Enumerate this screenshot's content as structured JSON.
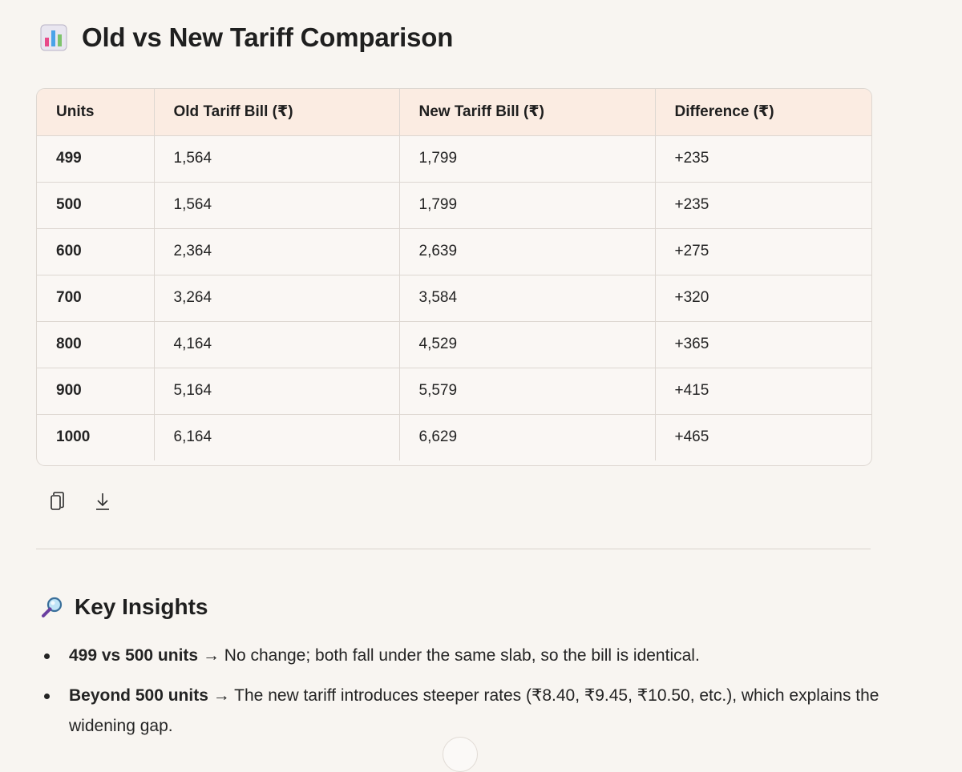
{
  "heading": {
    "icon": "bar-chart-icon",
    "title": "Old vs New Tariff Comparison"
  },
  "table": {
    "headers": [
      "Units",
      "Old Tariff Bill (₹)",
      "New Tariff Bill (₹)",
      "Difference (₹)"
    ],
    "rows": [
      [
        "499",
        "1,564",
        "1,799",
        "+235"
      ],
      [
        "500",
        "1,564",
        "1,799",
        "+235"
      ],
      [
        "600",
        "2,364",
        "2,639",
        "+275"
      ],
      [
        "700",
        "3,264",
        "3,584",
        "+320"
      ],
      [
        "800",
        "4,164",
        "4,529",
        "+365"
      ],
      [
        "900",
        "5,164",
        "5,579",
        "+415"
      ],
      [
        "1000",
        "6,164",
        "6,629",
        "+465"
      ]
    ]
  },
  "actions": {
    "copy_icon": "copy-icon",
    "download_icon": "download-icon"
  },
  "insights": {
    "icon": "magnifying-glass-icon",
    "title": "Key Insights",
    "items": [
      {
        "bold": "499 vs 500 units",
        "text": " → No change; both fall under the same slab, so the bill is identical."
      },
      {
        "bold": "Beyond 500 units",
        "text": " → The new tariff introduces steeper rates (₹8.40, ₹9.45, ₹10.50, etc.), which explains the widening gap."
      }
    ]
  },
  "colors": {
    "background": "#f8f5f1",
    "table_header": "#fbece2",
    "border": "#ddd7d1",
    "text": "#1f1f1f"
  }
}
